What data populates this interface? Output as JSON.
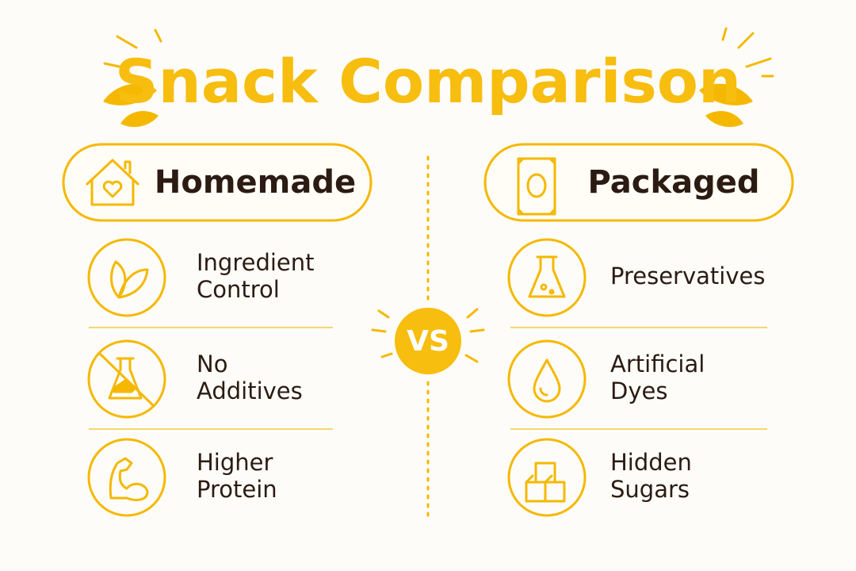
{
  "title": "Snack Comparison",
  "vs": "VS",
  "left": {
    "heading": "Homemade",
    "items": [
      [
        "Ingredient",
        "Control"
      ],
      [
        "No",
        "Additives"
      ],
      [
        "Higher",
        "Protein"
      ]
    ]
  },
  "right": {
    "heading": "Packaged",
    "items": [
      [
        "Preservatives"
      ],
      [
        "Artificial",
        "Dyes"
      ],
      [
        "Hidden",
        "Sugars"
      ]
    ]
  }
}
